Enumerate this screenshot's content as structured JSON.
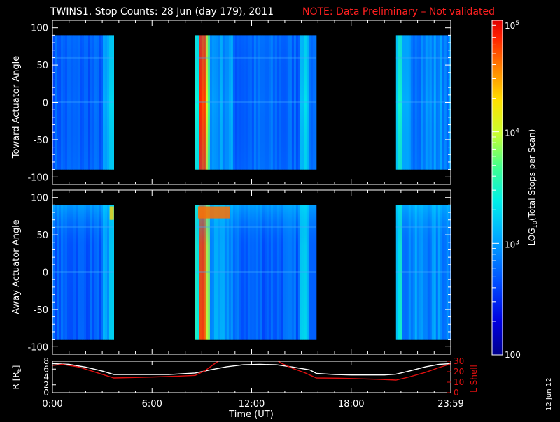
{
  "header": {
    "title": "TWINS1. Stop Counts: 28 Jun (day 179), 2011",
    "note": "NOTE: Data Preliminary – Not validated"
  },
  "footer": {
    "date_stamp": "12 Jun 12"
  },
  "colors": {
    "background": "#000000",
    "axis": "#ffffff",
    "note": "#ff2020",
    "r_line": "#ffffff",
    "lshell_line": "#e01010"
  },
  "chart_data": [
    {
      "type": "heatmap",
      "panel": "toward",
      "ylabel": "Toward Actuator Angle",
      "xlim": [
        0,
        24
      ],
      "ylim": [
        -110,
        110
      ],
      "yticks": [
        -100,
        -50,
        0,
        50,
        100
      ],
      "data_angle_range": [
        -90,
        90
      ],
      "data_segments_hours": [
        [
          0.0,
          3.7
        ],
        [
          8.6,
          15.9
        ],
        [
          20.7,
          24.0
        ]
      ],
      "grid": false
    },
    {
      "type": "heatmap",
      "panel": "away",
      "ylabel": "Away Actuator Angle",
      "xlim": [
        0,
        24
      ],
      "ylim": [
        -110,
        110
      ],
      "yticks": [
        -100,
        -50,
        0,
        50,
        100
      ],
      "data_angle_range": [
        -90,
        90
      ],
      "data_segments_hours": [
        [
          0.0,
          3.7
        ],
        [
          8.6,
          15.9
        ],
        [
          20.7,
          24.0
        ]
      ],
      "grid": false
    },
    {
      "type": "colorbar",
      "label_parts": {
        "pre": "LOG",
        "sub": "10",
        "post": "(Total Stops per Scan)"
      },
      "scale": "log",
      "range": [
        100,
        100000
      ],
      "tick_labels": [
        {
          "value": 100000,
          "base": "10",
          "exp": "5"
        },
        {
          "value": 10000,
          "base": "10",
          "exp": "4"
        },
        {
          "value": 1000,
          "base": "10",
          "exp": "3"
        },
        {
          "value": 100,
          "base": "100",
          "exp": ""
        }
      ]
    },
    {
      "type": "line",
      "panel": "orbit",
      "xlabel": "Time (UT)",
      "xlim": [
        0,
        24
      ],
      "xtick_labels": [
        "0:00",
        "6:00",
        "12:00",
        "18:00",
        "23:59"
      ],
      "xtick_hours": [
        0,
        6,
        12,
        18,
        24
      ],
      "left_axis": {
        "label_pre": "R [R",
        "label_sub": "E",
        "label_post": "]",
        "ylim": [
          0,
          8
        ],
        "ticks": [
          0,
          2,
          4,
          6,
          8
        ]
      },
      "right_axis": {
        "label": "L Shell",
        "ylim": [
          0,
          30
        ],
        "ticks": [
          0,
          10,
          20,
          30
        ]
      },
      "series": [
        {
          "axis": "left",
          "x": [
            0.0,
            1.0,
            2.0,
            3.0,
            3.7,
            5.0,
            6.0,
            7.0,
            8.6,
            9.5,
            10.5,
            11.5,
            12.5,
            13.5,
            14.5,
            15.5,
            15.9,
            17.0,
            18.0,
            19.0,
            20.0,
            20.7,
            21.5,
            22.5,
            23.3,
            24.0
          ],
          "y": [
            7.4,
            7.2,
            6.5,
            5.5,
            4.6,
            4.6,
            4.6,
            4.6,
            5.0,
            5.8,
            6.6,
            7.1,
            7.2,
            7.1,
            6.5,
            5.8,
            4.9,
            4.6,
            4.5,
            4.5,
            4.5,
            4.7,
            5.5,
            6.6,
            7.2,
            7.4
          ]
        },
        {
          "axis": "right",
          "x": [
            0.0,
            0.6,
            1.6,
            2.6,
            3.7,
            5.0,
            6.2,
            7.4,
            8.6,
            9.2,
            9.8,
            10.2,
            13.4,
            13.8,
            14.5,
            15.2,
            15.9,
            17.2,
            18.6,
            19.8,
            20.7,
            21.5,
            22.5,
            23.3,
            24.0
          ],
          "y": [
            26.0,
            27.0,
            24.5,
            19.5,
            14.0,
            14.5,
            15.0,
            15.6,
            16.5,
            21.0,
            28.0,
            32.0,
            32.0,
            28.0,
            23.0,
            19.0,
            14.0,
            13.8,
            13.2,
            12.7,
            12.0,
            15.0,
            19.5,
            24.0,
            27.5
          ]
        }
      ]
    }
  ]
}
